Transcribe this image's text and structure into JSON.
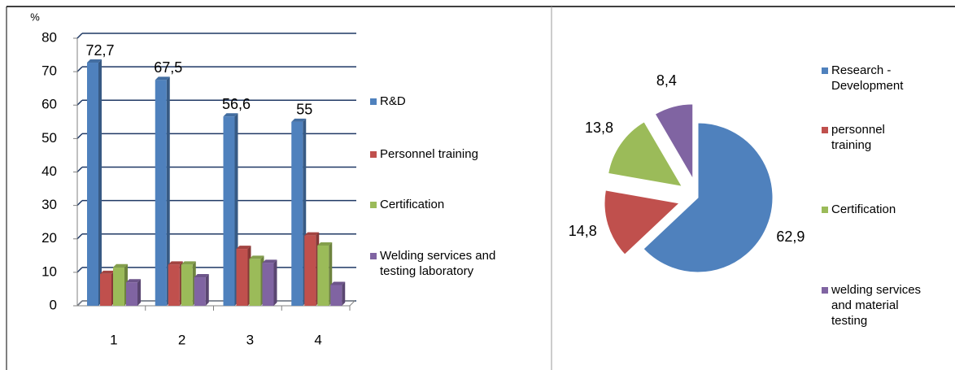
{
  "chart_data": [
    {
      "type": "bar",
      "y_axis_title": "%",
      "categories": [
        "1",
        "2",
        "3",
        "4"
      ],
      "series": [
        {
          "name": "R&D",
          "color": "#4f81bd",
          "values": [
            72.7,
            67.5,
            56.6,
            55
          ],
          "value_labels": [
            "72,7",
            "67,5",
            "56,6",
            "55"
          ]
        },
        {
          "name": "Personnel training",
          "color": "#c0504d",
          "values": [
            9.5,
            12.3,
            17,
            21
          ]
        },
        {
          "name": "Certification",
          "color": "#9bbb59",
          "values": [
            11.5,
            12.3,
            14,
            18
          ]
        },
        {
          "name": "Welding services and testing laboratory",
          "color": "#8064a2",
          "values": [
            7,
            8.5,
            12.8,
            6.2
          ]
        }
      ],
      "ylim": [
        0,
        80
      ],
      "yticks": [
        0,
        10,
        20,
        30,
        40,
        50,
        60,
        70,
        80
      ],
      "grid": true
    },
    {
      "type": "pie",
      "categories": [
        "Research - Development",
        "personnel training",
        "Certification",
        "welding services and material testing"
      ],
      "values": [
        62.9,
        14.8,
        13.8,
        8.4
      ],
      "value_labels": [
        "62,9",
        "14,8",
        "13,8",
        "8,4"
      ],
      "colors": [
        "#4f81bd",
        "#c0504d",
        "#9bbb59",
        "#8064a2"
      ]
    }
  ]
}
